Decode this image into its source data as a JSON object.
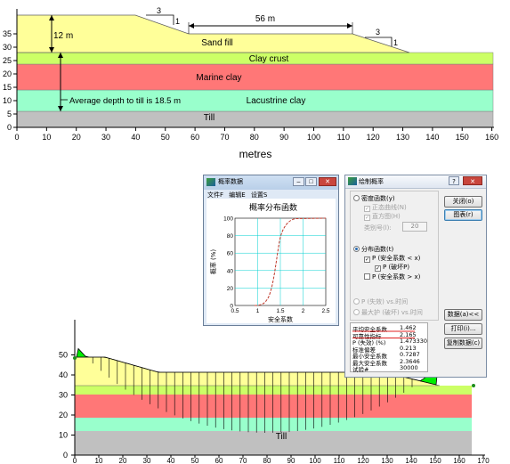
{
  "top_chart": {
    "x_ticks": [
      "0",
      "10",
      "20",
      "30",
      "40",
      "50",
      "60",
      "70",
      "80",
      "90",
      "100",
      "110",
      "120",
      "130",
      "140",
      "150",
      "160"
    ],
    "y_ticks": [
      "0",
      "5",
      "10",
      "15",
      "20",
      "25",
      "30",
      "35"
    ],
    "x_label": "metres",
    "layers": [
      {
        "label": "Sand fill",
        "color": "#ffff99"
      },
      {
        "label": "Clay crust",
        "color": "#ccff66"
      },
      {
        "label": "Marine clay",
        "color": "#ff7777"
      },
      {
        "label": "Lacustrine clay",
        "color": "#99ffcc"
      },
      {
        "label": "Till",
        "color": "#c0c0c0"
      }
    ],
    "annotations": {
      "height": "12 m",
      "crest": "56 m",
      "slope_left_h": "3",
      "slope_left_v": "1",
      "slope_right_h": "3",
      "slope_right_v": "1",
      "depth_note": "Average depth to till is 18.5 m"
    }
  },
  "bottom_chart": {
    "x_ticks": [
      "0",
      "10",
      "20",
      "30",
      "40",
      "50",
      "60",
      "70",
      "80",
      "90",
      "100",
      "110",
      "120",
      "130",
      "140",
      "150",
      "160",
      "170"
    ],
    "y_ticks": [
      "0",
      "10",
      "20",
      "30",
      "40",
      "50"
    ],
    "till_label": "Till",
    "slice_color": "#00ee00"
  },
  "prob_window": {
    "title": "概率数据",
    "menu": [
      "文件F",
      "编辑E",
      "设置S"
    ],
    "plot_title": "概率分布函数",
    "y_label": "概率 (%)",
    "x_label": "安全系数",
    "x_ticks": [
      "0.5",
      "1",
      "1.5",
      "2",
      "2.5"
    ],
    "y_ticks": [
      "0",
      "20",
      "40",
      "60",
      "80",
      "100"
    ]
  },
  "analysis_dialog": {
    "title": "绘制概率",
    "buttons": {
      "close": "关闭(o)",
      "chart": "图表(r)",
      "data": "数据(a)<<",
      "print": "打印(i)...",
      "copy": "复制数据(c)"
    },
    "density": {
      "label": "密度函数(y)",
      "normal": "正态曲线(N)",
      "histogram": "直方图(H)",
      "classes_label": "类别号(l):",
      "classes_value": "20"
    },
    "distribution": {
      "label": "分布函数(t)",
      "p_lt": "P (安全系数 < x)",
      "p_fail": "P (破坏P)",
      "p_gt": "P (安全系数 > x)"
    },
    "other": {
      "p_fail_time": "P (失效) vs.时间",
      "max_fos_time": "最大护 (破坏) vs.时间"
    },
    "stats": [
      {
        "label": "平均安全系数",
        "value": "1.462"
      },
      {
        "label": "可靠性指标",
        "value": "2.165"
      },
      {
        "label": "P (失效) (%)",
        "value": "1.473330"
      },
      {
        "label": "标准偏差",
        "value": "0.213"
      },
      {
        "label": "最小安全系数",
        "value": "0.7287"
      },
      {
        "label": "最大安全系数",
        "value": "2.3646"
      },
      {
        "label": "试验#",
        "value": "30000"
      }
    ]
  }
}
